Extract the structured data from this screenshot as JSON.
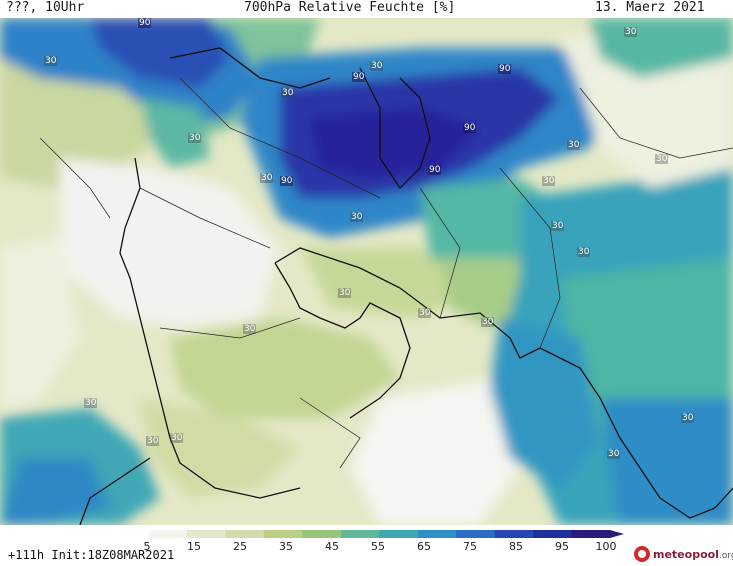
{
  "header": {
    "left": "???, 10Uhr",
    "title": "700hPa Relative Feuchte [%]",
    "date": "13. Maerz 2021"
  },
  "map": {
    "contour_labels": [
      "90",
      "30",
      "90",
      "30",
      "90",
      "30",
      "90",
      "30",
      "30",
      "90",
      "30",
      "90",
      "30",
      "30",
      "30",
      "30",
      "30",
      "30",
      "30",
      "30",
      "30",
      "30",
      "30",
      "30",
      "30",
      "30",
      "30"
    ],
    "background_colors": {
      "very_dry": "#f4f4f2",
      "dry": "#e4e8c6",
      "moderate": "#c5d596",
      "humid": "#57b8a2",
      "wet": "#2f8bc6",
      "saturated": "#2231a3"
    }
  },
  "colorbar": {
    "labels": [
      "5",
      "15",
      "25",
      "35",
      "45",
      "55",
      "65",
      "75",
      "85",
      "95",
      "100"
    ],
    "colors": [
      "#ffffff",
      "#f4f4ef",
      "#e6e8cc",
      "#d2dcaa",
      "#bccf86",
      "#96c47a",
      "#5fb89a",
      "#3ea8b0",
      "#2f8ec6",
      "#2a6dc3",
      "#2648b6",
      "#1f2f9c",
      "#2b1a7a"
    ]
  },
  "footer": {
    "init_label": "+111h Init:18Z08MAR2021",
    "brand_name": "meteopool",
    "brand_tld": ".org"
  }
}
